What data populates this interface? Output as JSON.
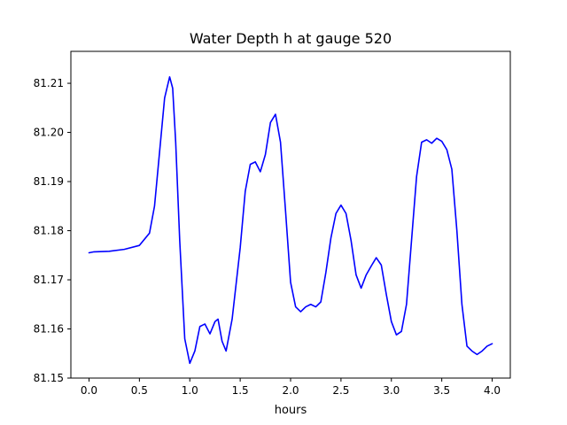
{
  "chart_data": {
    "type": "line",
    "title": "Water Depth h at gauge 520",
    "xlabel": "hours",
    "ylabel": "",
    "xlim": [
      -0.18,
      4.18
    ],
    "ylim": [
      81.15,
      81.2165
    ],
    "x_ticks": [
      0.0,
      0.5,
      1.0,
      1.5,
      2.0,
      2.5,
      3.0,
      3.5,
      4.0
    ],
    "x_tick_labels": [
      "0.0",
      "0.5",
      "1.0",
      "1.5",
      "2.0",
      "2.5",
      "3.0",
      "3.5",
      "4.0"
    ],
    "y_ticks": [
      81.15,
      81.16,
      81.17,
      81.18,
      81.19,
      81.2,
      81.21
    ],
    "y_tick_labels": [
      "81.15",
      "81.16",
      "81.17",
      "81.18",
      "81.19",
      "81.20",
      "81.21"
    ],
    "grid": false,
    "series": [
      {
        "color": "#0000ff",
        "x": [
          0.0,
          0.05,
          0.2,
          0.35,
          0.5,
          0.6,
          0.65,
          0.7,
          0.75,
          0.8,
          0.83,
          0.86,
          0.9,
          0.95,
          1.0,
          1.05,
          1.1,
          1.15,
          1.2,
          1.25,
          1.28,
          1.32,
          1.36,
          1.42,
          1.5,
          1.55,
          1.6,
          1.65,
          1.7,
          1.75,
          1.8,
          1.85,
          1.9,
          1.95,
          2.0,
          2.05,
          2.1,
          2.15,
          2.2,
          2.25,
          2.3,
          2.35,
          2.4,
          2.45,
          2.5,
          2.55,
          2.6,
          2.65,
          2.7,
          2.75,
          2.8,
          2.85,
          2.9,
          2.95,
          3.0,
          3.05,
          3.1,
          3.15,
          3.2,
          3.25,
          3.3,
          3.35,
          3.4,
          3.45,
          3.5,
          3.55,
          3.6,
          3.65,
          3.7,
          3.75,
          3.8,
          3.85,
          3.9,
          3.95,
          4.0
        ],
        "y": [
          81.1755,
          81.1757,
          81.1758,
          81.1762,
          81.177,
          81.1795,
          81.185,
          81.196,
          81.207,
          81.2113,
          81.209,
          81.198,
          81.178,
          81.158,
          81.153,
          81.1555,
          81.1605,
          81.161,
          81.159,
          81.1615,
          81.162,
          81.1575,
          81.1555,
          81.162,
          81.1765,
          81.188,
          81.1935,
          81.194,
          81.192,
          81.1955,
          81.202,
          81.2037,
          81.198,
          81.184,
          81.1695,
          81.1645,
          81.1635,
          81.1645,
          81.165,
          81.1645,
          81.1655,
          81.1715,
          81.1785,
          81.1835,
          81.1852,
          81.1835,
          81.178,
          81.171,
          81.1683,
          81.171,
          81.1728,
          81.1745,
          81.173,
          81.167,
          81.1615,
          81.1588,
          81.1595,
          81.165,
          81.178,
          81.191,
          81.198,
          81.1985,
          81.1978,
          81.1988,
          81.1982,
          81.1965,
          81.1925,
          81.18,
          81.165,
          81.1565,
          81.1555,
          81.1548,
          81.1555,
          81.1565,
          81.157
        ]
      }
    ]
  }
}
